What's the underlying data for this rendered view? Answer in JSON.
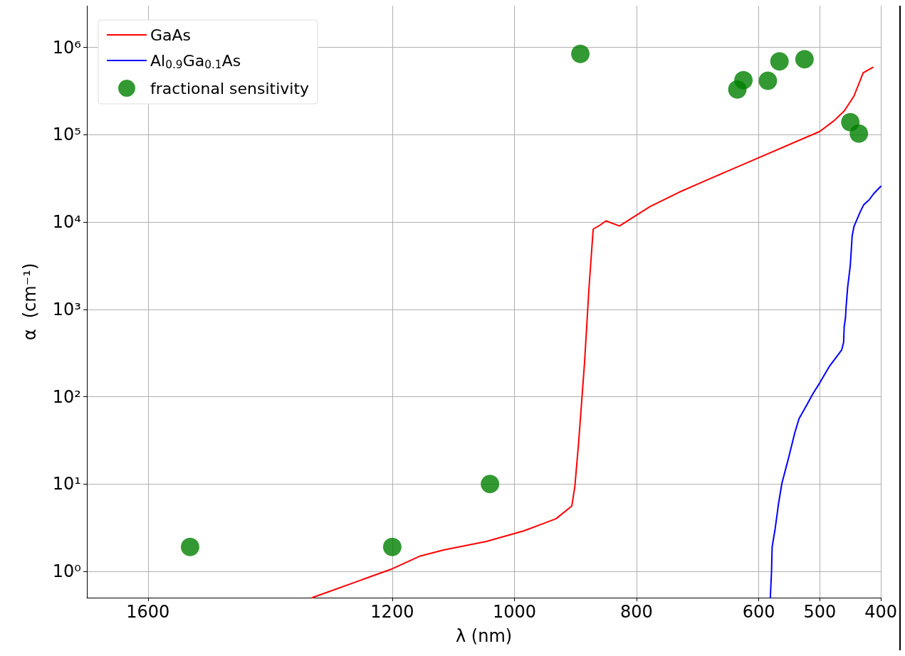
{
  "chart_data": {
    "type": "line",
    "xlabel": "λ (nm)",
    "ylabel": "α  (cm⁻¹)",
    "xlim": [
      1700,
      400
    ],
    "xticks": [
      1600,
      1200,
      1000,
      800,
      600,
      500,
      400
    ],
    "ylim": [
      0.5,
      3000000
    ],
    "yticks": [
      {
        "value": 1,
        "label": "10⁰"
      },
      {
        "value": 10,
        "label": "10¹"
      },
      {
        "value": 100,
        "label": "10²"
      },
      {
        "value": 1000,
        "label": "10³"
      },
      {
        "value": 10000,
        "label": "10⁴"
      },
      {
        "value": 100000,
        "label": "10⁵"
      },
      {
        "value": 1000000,
        "label": "10⁶"
      }
    ],
    "log": "y",
    "grid": true,
    "legend": "top left",
    "line_style": "solid",
    "series": [
      {
        "name": "GaAs",
        "color": "#ff0000",
        "marker": "none",
        "x": [
          1331,
          1200,
          1154,
          1116,
          1046,
          985,
          932,
          906,
          901,
          895,
          885,
          878,
          871,
          860,
          850,
          828,
          778,
          730,
          691,
          500,
          477,
          460,
          444,
          429,
          413
        ],
        "values": [
          0.5,
          1.07,
          1.5,
          1.76,
          2.2,
          2.9,
          4.0,
          5.6,
          9.4,
          29,
          254,
          1700,
          8300,
          9200,
          10300,
          9000,
          15000,
          22000,
          29000,
          109000,
          144000,
          187000,
          277000,
          510000,
          590000
        ]
      },
      {
        "name": "Al$_{0.9}$Ga$_{0.1}$As",
        "color": "#0000ff",
        "marker": "none",
        "x": [
          581,
          579,
          578,
          573,
          567.5,
          562,
          551,
          541,
          534,
          521,
          511,
          500,
          484,
          470.6,
          464,
          461,
          460,
          458,
          457,
          454.4,
          450,
          447,
          444,
          434,
          428,
          419,
          412,
          400
        ],
        "values": [
          0.5,
          1.0,
          1.9,
          3.1,
          6.0,
          10.2,
          20,
          38.5,
          56,
          81,
          109,
          144,
          224,
          298,
          345,
          419,
          635,
          788,
          1050,
          1780,
          3200,
          6900,
          8900,
          13000,
          15800,
          18000,
          21000,
          25700
        ]
      },
      {
        "name": "fractional sensitivity",
        "type": "scatter",
        "color": "#008000",
        "marker": "circle",
        "x": [
          1531,
          1200,
          1040,
          892,
          635,
          625,
          585,
          566,
          525,
          450,
          436
        ],
        "values": [
          1.9,
          1.9,
          10,
          840000,
          330000,
          420000,
          415000,
          690000,
          730000,
          139000,
          103000
        ]
      }
    ]
  }
}
